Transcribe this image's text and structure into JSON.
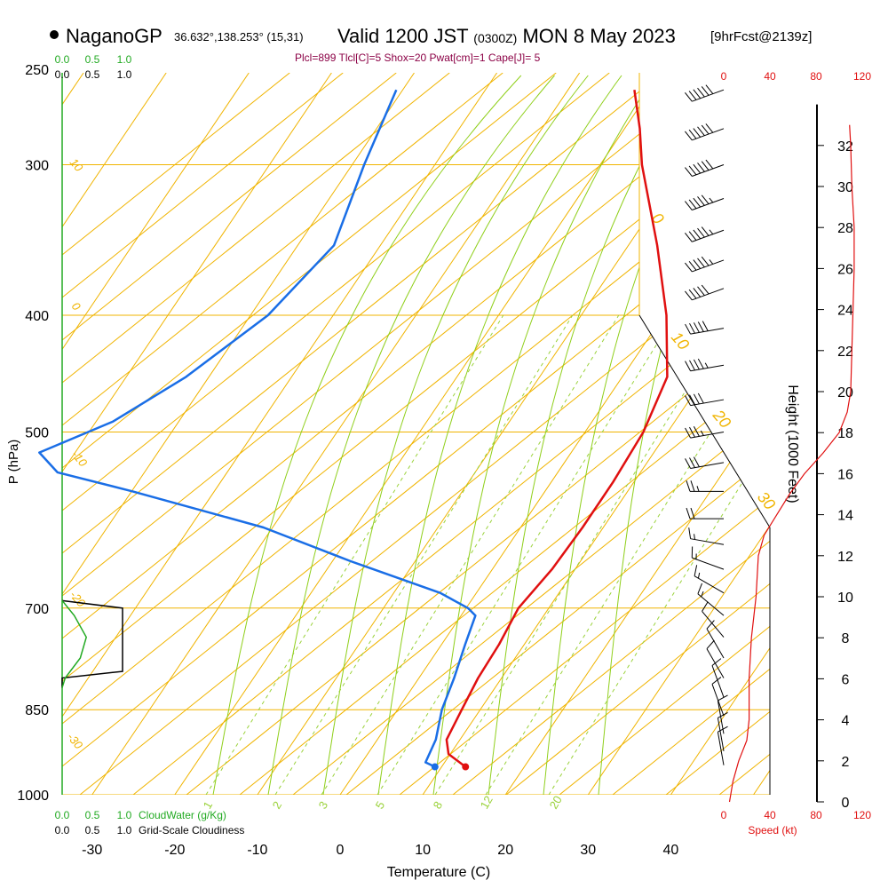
{
  "header": {
    "station": "NaganoGP",
    "location": "36.632°,138.253° (15,31)",
    "valid_main": "Valid 1200 JST",
    "valid_utc": "(0300Z)",
    "valid_date": "MON 8 May 2023",
    "forecast": "[9hrFcst@2139z]",
    "params": "Plcl=899 Tlcl[C]=5 Shox=20 Pwat[cm]=1 Cape[J]= 5"
  },
  "colors": {
    "temperature": "#e01010",
    "dewpoint": "#1a6ee6",
    "isotherm": "#f0b400",
    "moist_adiabat": "#8fcf1a",
    "mixing_ratio": "#9ad23a",
    "cloudwater": "#22aa22",
    "cloudiness": "#000000",
    "wind_speed": "#e01010"
  },
  "chart_data": {
    "type": "line",
    "xlabel": "Temperature (C)",
    "ylabel": "P (hPa)",
    "right_ylabel": "Height (1000 Feet)",
    "pressure_ticks": [
      250,
      300,
      400,
      500,
      700,
      850,
      1000
    ],
    "temperature_ticks": [
      -30,
      -20,
      -10,
      0,
      10,
      20,
      30,
      40
    ],
    "height_ticks": [
      0,
      2,
      4,
      6,
      8,
      10,
      12,
      14,
      16,
      18,
      20,
      22,
      24,
      26,
      28,
      30,
      32
    ],
    "isotherm_labels": [
      "10",
      "0",
      "-10",
      "-20",
      "-30",
      "0",
      "10",
      "20",
      "30"
    ],
    "mixing_ratio_labels": [
      "1",
      "2",
      "3",
      "5",
      "8",
      "12",
      "20"
    ],
    "temperature_profile": [
      {
        "p": 948,
        "t": 12.9
      },
      {
        "p": 925,
        "t": 9.8
      },
      {
        "p": 900,
        "t": 8.4
      },
      {
        "p": 850,
        "t": 7.8
      },
      {
        "p": 800,
        "t": 7.2
      },
      {
        "p": 750,
        "t": 7.0
      },
      {
        "p": 700,
        "t": 6.4
      },
      {
        "p": 650,
        "t": 7.3
      },
      {
        "p": 600,
        "t": 7.6
      },
      {
        "p": 550,
        "t": 7.6
      },
      {
        "p": 500,
        "t": 7.2
      },
      {
        "p": 450,
        "t": 5.6
      },
      {
        "p": 400,
        "t": 0.5
      },
      {
        "p": 350,
        "t": -6.3
      },
      {
        "p": 300,
        "t": -14.7
      },
      {
        "p": 280,
        "t": -17.9
      },
      {
        "p": 260,
        "t": -21.7
      }
    ],
    "dewpoint_profile": [
      {
        "p": 948,
        "t": 9.2
      },
      {
        "p": 940,
        "t": 7.7
      },
      {
        "p": 900,
        "t": 7.1
      },
      {
        "p": 850,
        "t": 5.4
      },
      {
        "p": 800,
        "t": 4.3
      },
      {
        "p": 750,
        "t": 2.9
      },
      {
        "p": 710,
        "t": 1.8
      },
      {
        "p": 700,
        "t": 0.3
      },
      {
        "p": 680,
        "t": -4.3
      },
      {
        "p": 640,
        "t": -17.7
      },
      {
        "p": 600,
        "t": -31.0
      },
      {
        "p": 560,
        "t": -49.8
      },
      {
        "p": 540,
        "t": -60.4
      },
      {
        "p": 520,
        "t": -64.2
      },
      {
        "p": 490,
        "t": -57.8
      },
      {
        "p": 450,
        "t": -52.6
      },
      {
        "p": 400,
        "t": -47.7
      },
      {
        "p": 350,
        "t": -45.4
      },
      {
        "p": 300,
        "t": -48.3
      },
      {
        "p": 260,
        "t": -50.5
      }
    ],
    "wind_barbs": [
      {
        "p": 260,
        "dir": 250,
        "kt": 60
      },
      {
        "p": 280,
        "dir": 250,
        "kt": 60
      },
      {
        "p": 300,
        "dir": 250,
        "kt": 60
      },
      {
        "p": 320,
        "dir": 250,
        "kt": 55
      },
      {
        "p": 340,
        "dir": 250,
        "kt": 55
      },
      {
        "p": 360,
        "dir": 250,
        "kt": 55
      },
      {
        "p": 380,
        "dir": 250,
        "kt": 50
      },
      {
        "p": 410,
        "dir": 260,
        "kt": 50
      },
      {
        "p": 440,
        "dir": 260,
        "kt": 45
      },
      {
        "p": 470,
        "dir": 260,
        "kt": 40
      },
      {
        "p": 500,
        "dir": 260,
        "kt": 35
      },
      {
        "p": 530,
        "dir": 260,
        "kt": 30
      },
      {
        "p": 560,
        "dir": 270,
        "kt": 25
      },
      {
        "p": 590,
        "dir": 270,
        "kt": 20
      },
      {
        "p": 620,
        "dir": 280,
        "kt": 15
      },
      {
        "p": 650,
        "dir": 290,
        "kt": 15
      },
      {
        "p": 680,
        "dir": 300,
        "kt": 15
      },
      {
        "p": 710,
        "dir": 310,
        "kt": 15
      },
      {
        "p": 740,
        "dir": 320,
        "kt": 10
      },
      {
        "p": 770,
        "dir": 330,
        "kt": 10
      },
      {
        "p": 800,
        "dir": 330,
        "kt": 10
      },
      {
        "p": 830,
        "dir": 340,
        "kt": 10
      },
      {
        "p": 860,
        "dir": 340,
        "kt": 10
      },
      {
        "p": 890,
        "dir": 350,
        "kt": 10
      },
      {
        "p": 920,
        "dir": 350,
        "kt": 10
      },
      {
        "p": 945,
        "dir": 350,
        "kt": 10
      }
    ],
    "wind_speed_axis": {
      "ticks": [
        0,
        40,
        80,
        120
      ],
      "label": "Speed (kt)"
    },
    "wind_speed_profile": [
      {
        "h": 0,
        "kt": 5
      },
      {
        "h": 1,
        "kt": 8
      },
      {
        "h": 2,
        "kt": 13
      },
      {
        "h": 3,
        "kt": 20
      },
      {
        "h": 4,
        "kt": 22
      },
      {
        "h": 6,
        "kt": 22
      },
      {
        "h": 8,
        "kt": 24
      },
      {
        "h": 10,
        "kt": 28
      },
      {
        "h": 12,
        "kt": 30
      },
      {
        "h": 13,
        "kt": 35
      },
      {
        "h": 14,
        "kt": 46
      },
      {
        "h": 15,
        "kt": 57
      },
      {
        "h": 16,
        "kt": 70
      },
      {
        "h": 17,
        "kt": 86
      },
      {
        "h": 18,
        "kt": 100
      },
      {
        "h": 19,
        "kt": 107
      },
      {
        "h": 20,
        "kt": 110
      },
      {
        "h": 22,
        "kt": 111
      },
      {
        "h": 24,
        "kt": 112
      },
      {
        "h": 26,
        "kt": 113
      },
      {
        "h": 28,
        "kt": 113
      },
      {
        "h": 30,
        "kt": 111
      },
      {
        "h": 32,
        "kt": 110
      },
      {
        "h": 33,
        "kt": 109
      }
    ],
    "cloudwater_axis": {
      "ticks": [
        "0.0",
        "0.5",
        "1.0"
      ],
      "label": "CloudWater (g/Kg)"
    },
    "cloudiness_axis": {
      "ticks": [
        "0.0",
        "0.5",
        "1.0"
      ],
      "label": "Grid-Scale Cloudiness"
    },
    "cloudiness_profile": [
      {
        "p": 690,
        "v": 0.0
      },
      {
        "p": 700,
        "v": 1.0
      },
      {
        "p": 790,
        "v": 1.0
      },
      {
        "p": 800,
        "v": 0.0
      },
      {
        "p": 815,
        "v": 0.0
      }
    ],
    "cloudwater_profile": [
      {
        "p": 690,
        "v": 0.0
      },
      {
        "p": 710,
        "v": 0.2
      },
      {
        "p": 740,
        "v": 0.4
      },
      {
        "p": 770,
        "v": 0.3
      },
      {
        "p": 800,
        "v": 0.05
      },
      {
        "p": 815,
        "v": 0.0
      }
    ]
  }
}
